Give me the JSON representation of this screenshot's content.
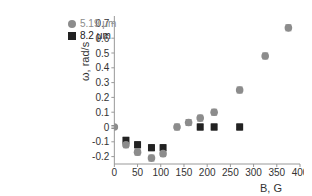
{
  "chart_data": {
    "type": "scatter",
    "x_label": "B, G",
    "y_label": "ω, rad/s",
    "xlim": [
      0,
      400
    ],
    "xticks": [
      0,
      50,
      100,
      150,
      200,
      250,
      300,
      350,
      400
    ],
    "ylim": [
      -0.25,
      0.75
    ],
    "yticks": [
      -0.2,
      -0.1,
      0,
      0.1,
      0.2,
      0.3,
      0.4,
      0.5,
      0.6,
      0.7
    ],
    "grid": false,
    "legend": "upper left",
    "series": [
      {
        "name": "8.2 μm",
        "color": "#222222",
        "marker": "square",
        "x": [
          25,
          50,
          80,
          105,
          185,
          215,
          270
        ],
        "values": [
          -0.09,
          -0.12,
          -0.14,
          -0.14,
          0.0,
          0.0,
          0.0
        ],
        "errors": [
          0.02,
          0.02,
          0.02,
          0.02,
          0.02,
          0.02,
          0.02
        ]
      },
      {
        "name": "5.19 μm",
        "color": "#8c8c8c",
        "marker": "circle",
        "x": [
          0,
          25,
          50,
          80,
          105,
          135,
          160,
          185,
          215,
          270,
          325,
          375
        ],
        "values": [
          0.0,
          -0.12,
          -0.17,
          -0.21,
          -0.18,
          0.0,
          0.03,
          0.06,
          0.1,
          0.25,
          0.48,
          0.67
        ],
        "errors": [
          0.01,
          0.02,
          0.02,
          0.02,
          0.02,
          0.02,
          0.02,
          0.02,
          0.02,
          0.02,
          0.02,
          0.02
        ]
      }
    ]
  }
}
